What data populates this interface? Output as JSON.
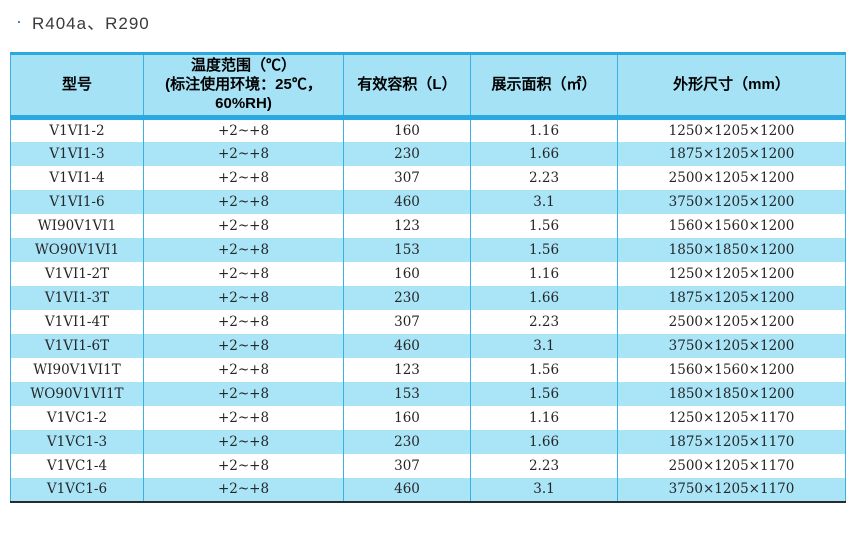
{
  "page": {
    "bullet": "·",
    "title": "R404a、R290"
  },
  "colors": {
    "accent_blue": "#29a9e0",
    "header_fill": "#a6e2f5",
    "stripe_fill": "#a9e4f7",
    "grid_line": "#3db0e2",
    "bottom_border": "#2a2a2a",
    "bullet_blue": "#2e74b5",
    "text_dark": "#262626"
  },
  "table": {
    "headers": [
      "型号",
      "温度范围（℃）\n(标注使用环境：25℃，\n60%RH)",
      "有效容积（L）",
      "展示面积（㎡）",
      "外形尺寸（mm）"
    ],
    "column_keys": [
      "model",
      "temp-range",
      "volume",
      "display-area",
      "dimensions"
    ],
    "rows": [
      [
        "V1VI1-2",
        "+2~+8",
        "160",
        "1.16",
        "1250×1205×1200"
      ],
      [
        "V1VI1-3",
        "+2~+8",
        "230",
        "1.66",
        "1875×1205×1200"
      ],
      [
        "V1VI1-4",
        "+2~+8",
        "307",
        "2.23",
        "2500×1205×1200"
      ],
      [
        "V1VI1-6",
        "+2~+8",
        "460",
        "3.1",
        "3750×1205×1200"
      ],
      [
        "WI90V1VI1",
        "+2~+8",
        "123",
        "1.56",
        "1560×1560×1200"
      ],
      [
        "WO90V1VI1",
        "+2~+8",
        "153",
        "1.56",
        "1850×1850×1200"
      ],
      [
        "V1VI1-2T",
        "+2~+8",
        "160",
        "1.16",
        "1250×1205×1200"
      ],
      [
        "V1VI1-3T",
        "+2~+8",
        "230",
        "1.66",
        "1875×1205×1200"
      ],
      [
        "V1VI1-4T",
        "+2~+8",
        "307",
        "2.23",
        "2500×1205×1200"
      ],
      [
        "V1VI1-6T",
        "+2~+8",
        "460",
        "3.1",
        "3750×1205×1200"
      ],
      [
        "WI90V1VI1T",
        "+2~+8",
        "123",
        "1.56",
        "1560×1560×1200"
      ],
      [
        "WO90V1VI1T",
        "+2~+8",
        "153",
        "1.56",
        "1850×1850×1200"
      ],
      [
        "V1VC1-2",
        "+2~+8",
        "160",
        "1.16",
        "1250×1205×1170"
      ],
      [
        "V1VC1-3",
        "+2~+8",
        "230",
        "1.66",
        "1875×1205×1170"
      ],
      [
        "V1VC1-4",
        "+2~+8",
        "307",
        "2.23",
        "2500×1205×1170"
      ],
      [
        "V1VC1-6",
        "+2~+8",
        "460",
        "3.1",
        "3750×1205×1170"
      ]
    ]
  }
}
